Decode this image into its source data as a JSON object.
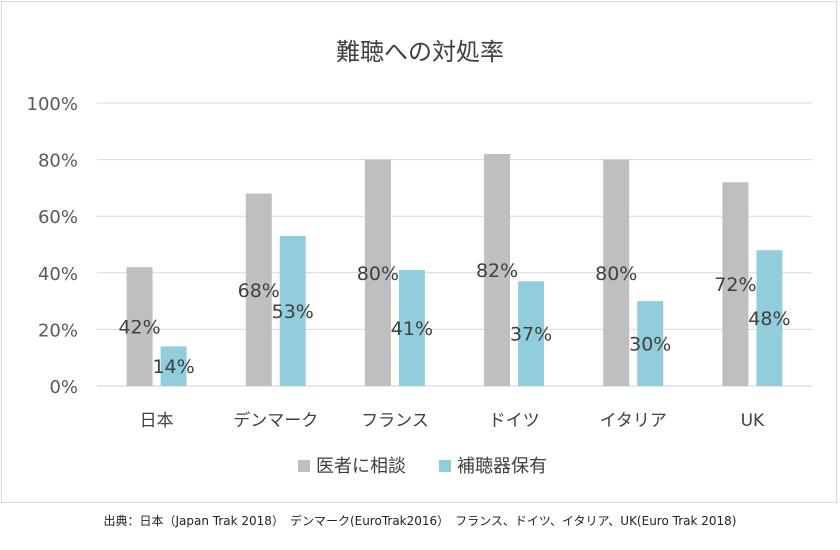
{
  "chart_data": {
    "type": "bar",
    "title": "難聴への対処率",
    "categories": [
      "日本",
      "デンマーク",
      "フランス",
      "ドイツ",
      "イタリア",
      "UK"
    ],
    "series": [
      {
        "name": "医者に相談",
        "values": [
          42,
          68,
          80,
          82,
          80,
          72
        ],
        "color": "#bfbfbf",
        "labels": [
          "42%",
          "68%",
          "80%",
          "82%",
          "80%",
          "72%"
        ]
      },
      {
        "name": "補聴器保有",
        "values": [
          14,
          53,
          41,
          37,
          30,
          48
        ],
        "color": "#92cddc",
        "labels": [
          "14%",
          "53%",
          "41%",
          "37%",
          "30%",
          "48%"
        ]
      }
    ],
    "ylim": [
      0,
      100
    ],
    "yticks": [
      0,
      20,
      40,
      60,
      80,
      100
    ],
    "ytick_labels": [
      "0%",
      "20%",
      "40%",
      "60%",
      "80%",
      "100%"
    ],
    "grid": true,
    "legend_position": "bottom"
  },
  "source_note": "出典：日本（Japan Trak 2018）　デンマーク(EuroTrak2016）　フランス、ドイツ、イタリア、UK(Euro Trak 2018)"
}
